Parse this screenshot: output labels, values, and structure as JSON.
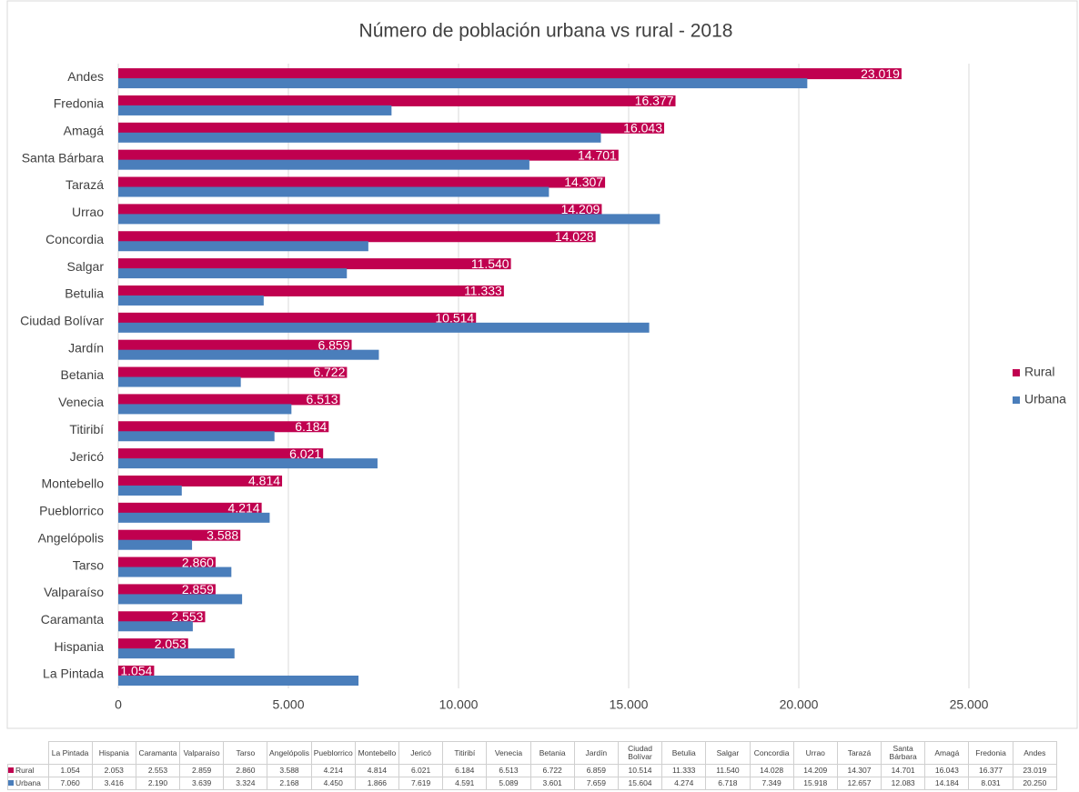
{
  "chart_data": {
    "type": "bar",
    "orientation": "horizontal",
    "title": "Número de población urbana vs rural - 2018",
    "categories": [
      "La Pintada",
      "Hispania",
      "Caramanta",
      "Valparaíso",
      "Tarso",
      "Angelópolis",
      "Pueblorrico",
      "Montebello",
      "Jericó",
      "Titiribí",
      "Venecia",
      "Betania",
      "Jardín",
      "Ciudad Bolívar",
      "Betulia",
      "Salgar",
      "Concordia",
      "Urrao",
      "Tarazá",
      "Santa Bárbara",
      "Amagá",
      "Fredonia",
      "Andes"
    ],
    "series": [
      {
        "name": "Rural",
        "color": "#c0004f",
        "values": [
          1054,
          2053,
          2553,
          2859,
          2860,
          3588,
          4214,
          4814,
          6021,
          6184,
          6513,
          6722,
          6859,
          10514,
          11333,
          11540,
          14028,
          14209,
          14307,
          14701,
          16043,
          16377,
          23019
        ],
        "value_labels": [
          "1.054",
          "2.053",
          "2.553",
          "2.859",
          "2.860",
          "3.588",
          "4.214",
          "4.814",
          "6.021",
          "6.184",
          "6.513",
          "6.722",
          "6.859",
          "10.514",
          "11.333",
          "11.540",
          "14.028",
          "14.209",
          "14.307",
          "14.701",
          "16.043",
          "16.377",
          "23.019"
        ],
        "bar_labels": true
      },
      {
        "name": "Urbana",
        "color": "#4a7ebb",
        "values": [
          7060,
          3416,
          2190,
          3639,
          3324,
          2168,
          4450,
          1866,
          7619,
          4591,
          5089,
          3601,
          7659,
          15604,
          4274,
          6718,
          7349,
          15918,
          12657,
          12083,
          14184,
          8031,
          20250
        ],
        "value_labels": [
          "7.060",
          "3.416",
          "2.190",
          "3.639",
          "3.324",
          "2.168",
          "4.450",
          "1.866",
          "7.619",
          "4.591",
          "5.089",
          "3.601",
          "7.659",
          "15.604",
          "4.274",
          "6.718",
          "7.349",
          "15.918",
          "12.657",
          "12.083",
          "14.184",
          "8.031",
          "20.250"
        ],
        "bar_labels": false
      }
    ],
    "xlim": [
      0,
      25000
    ],
    "xticks": [
      0,
      {
        "value": 5000,
        "label": "5.000"
      },
      {
        "value": 10000,
        "label": "10.000"
      },
      {
        "value": 15000,
        "label": "15.000"
      },
      {
        "value": 20000,
        "label": "20.000"
      },
      {
        "value": 25000,
        "label": "25.000"
      }
    ],
    "grid": true,
    "legend": "right",
    "data_table": true
  }
}
